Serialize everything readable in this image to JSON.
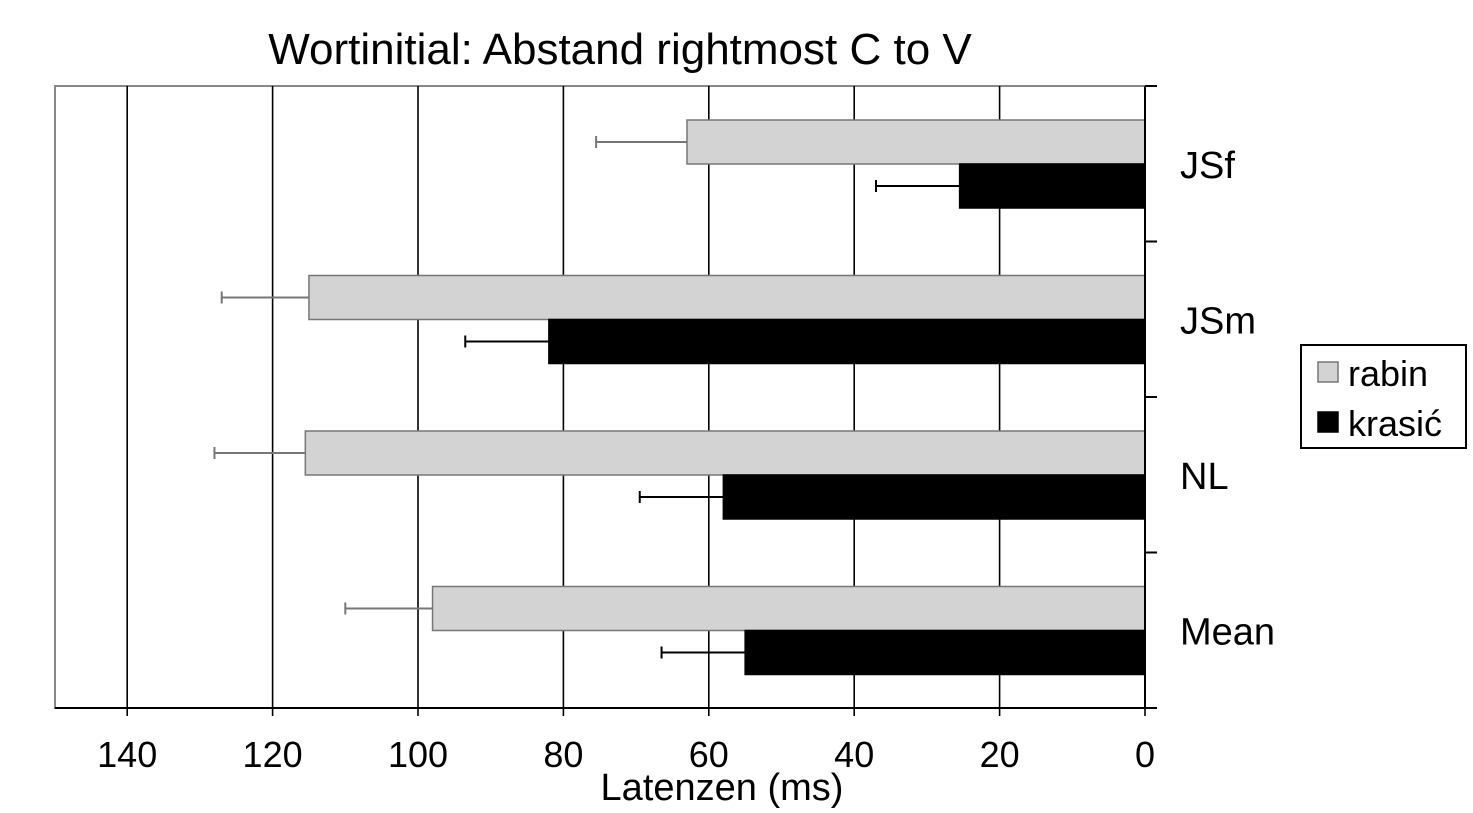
{
  "chart_data": {
    "type": "bar",
    "orientation": "horizontal",
    "x_axis_reversed": true,
    "title": "Wortinitial: Abstand rightmost C to V",
    "xlabel": "Latenzen (ms)",
    "ylabel": "",
    "xlim": [
      0,
      150
    ],
    "xticks": [
      140,
      120,
      100,
      80,
      60,
      40,
      20,
      0
    ],
    "grid": true,
    "legend_position": "right",
    "categories": [
      "JSf",
      "JSm",
      "NL",
      "Mean"
    ],
    "series": [
      {
        "name": "rabin",
        "color": "#d3d3d3",
        "values": [
          63,
          115,
          115.5,
          98
        ],
        "error": [
          12.5,
          12,
          12.5,
          12
        ]
      },
      {
        "name": "krasić",
        "color": "#000000",
        "values": [
          25.5,
          82,
          58,
          55
        ],
        "error": [
          11.5,
          11.5,
          11.5,
          11.5
        ]
      }
    ]
  }
}
